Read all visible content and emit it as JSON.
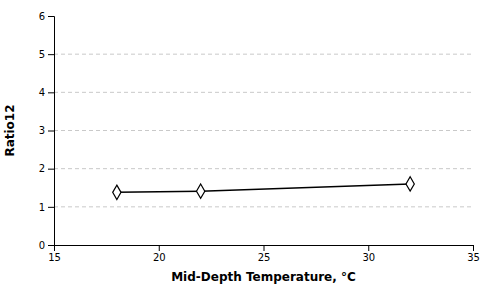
{
  "chart_data": {
    "type": "line",
    "x": [
      18,
      22,
      32
    ],
    "values": [
      1.38,
      1.41,
      1.6
    ],
    "xlabel": "Mid-Depth Temperature, °C",
    "ylabel": "Ratio12",
    "xlim": [
      15,
      35
    ],
    "ylim": [
      0,
      6
    ],
    "xticks": [
      15,
      20,
      25,
      30,
      35
    ],
    "yticks": [
      0,
      1,
      2,
      3,
      4,
      5,
      6
    ],
    "grid": true,
    "color": "#000000",
    "marker": "diamond"
  }
}
